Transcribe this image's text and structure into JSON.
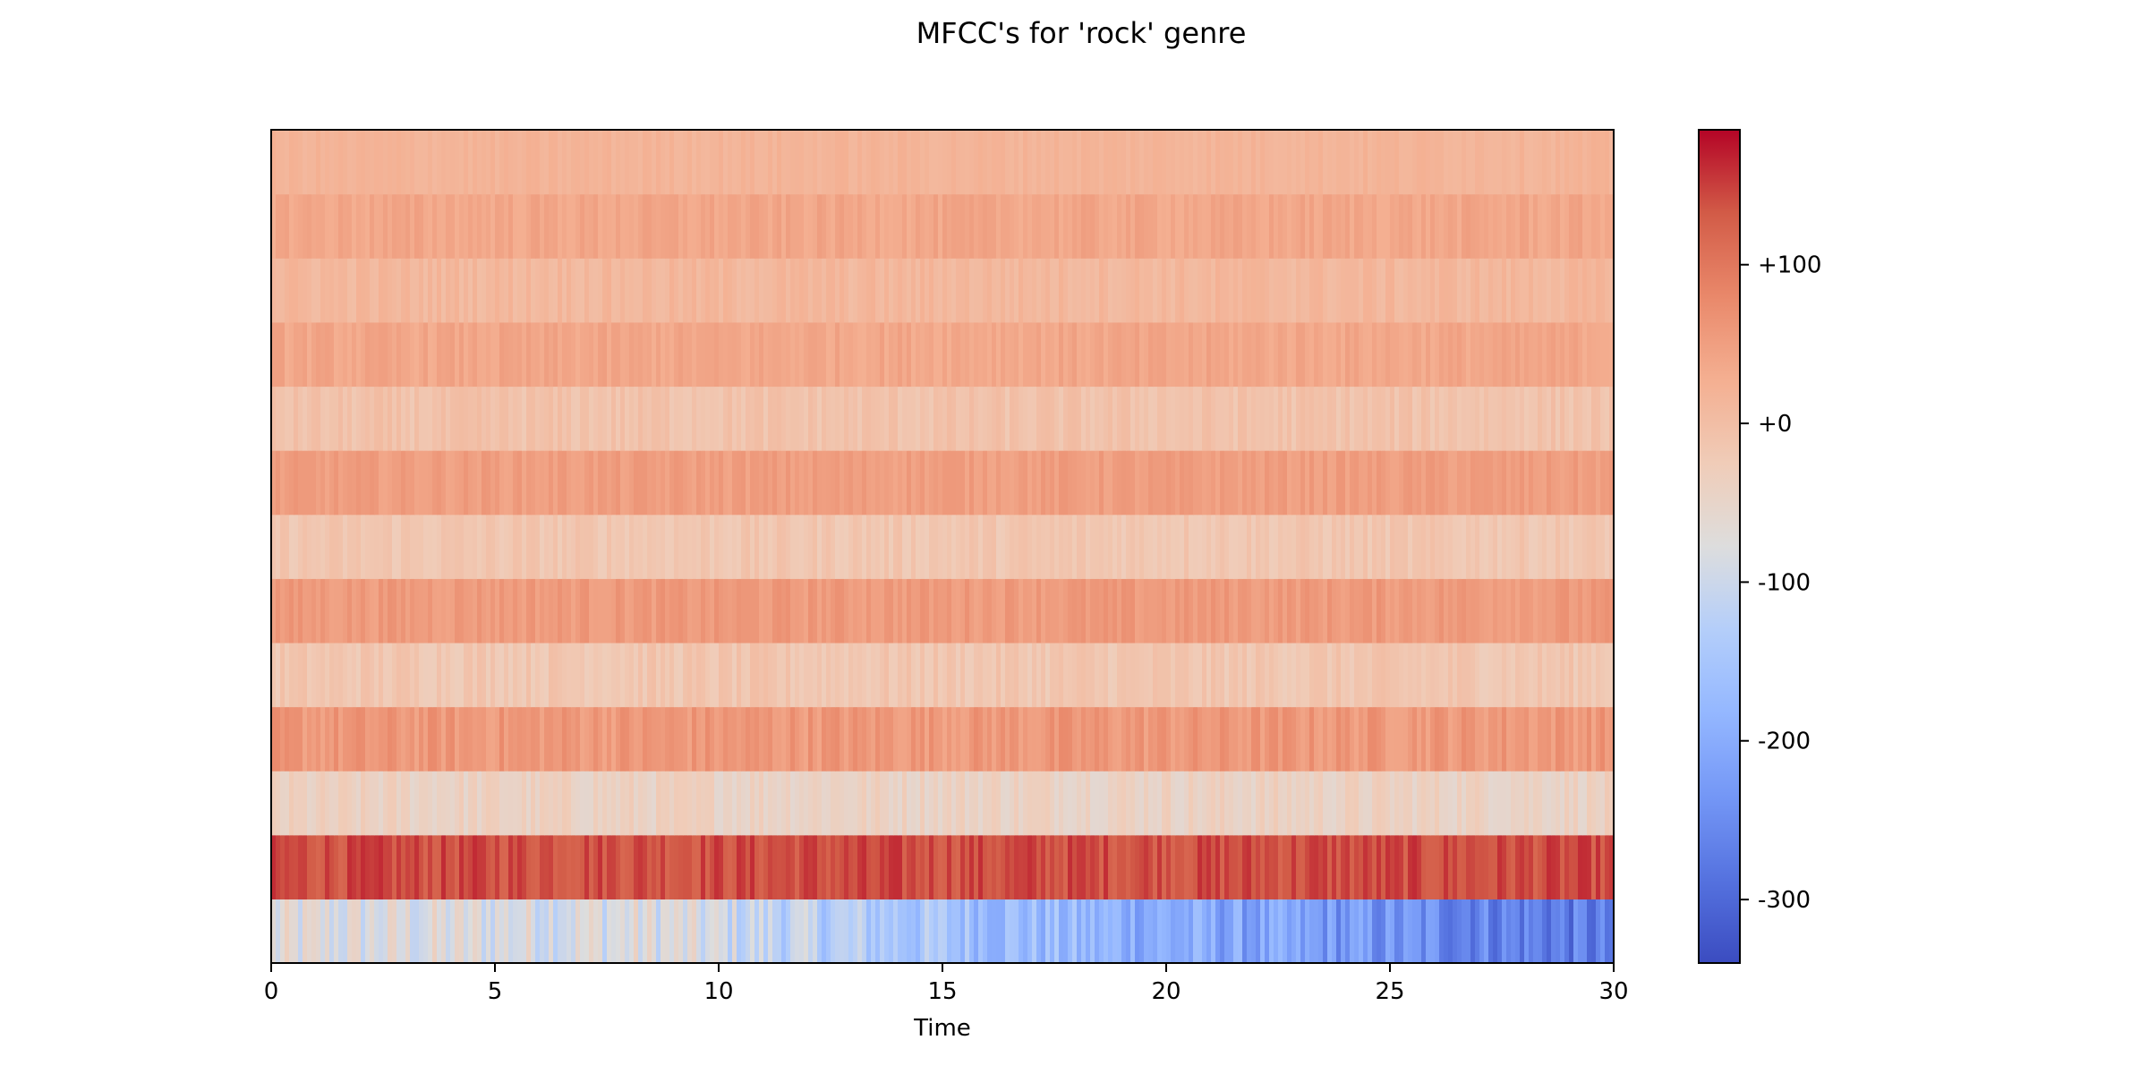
{
  "chart_data": {
    "type": "heatmap",
    "title": "MFCC's for 'rock' genre",
    "xlabel": "Time",
    "ylabel": "",
    "xlim": [
      0,
      30
    ],
    "x_ticks": [
      0,
      5,
      10,
      15,
      20,
      25,
      30
    ],
    "x_tick_labels": [
      "0",
      "5",
      "10",
      "15",
      "20",
      "25",
      "30"
    ],
    "colormap": "coolwarm",
    "color_range": [
      -340,
      185
    ],
    "colorbar_ticks": [
      100,
      0,
      -100,
      -200,
      -300
    ],
    "colorbar_tick_labels": [
      "+100",
      "+0",
      "-100",
      "-200",
      "-300"
    ],
    "time_bins": 300,
    "rows_bottom_to_top": [
      {
        "coefficient": 1,
        "mean": -175,
        "variation": 95
      },
      {
        "coefficient": 2,
        "mean": 140,
        "variation": 22
      },
      {
        "coefficient": 3,
        "mean": -40,
        "variation": 20
      },
      {
        "coefficient": 4,
        "mean": 58,
        "variation": 20
      },
      {
        "coefficient": 5,
        "mean": -15,
        "variation": 16
      },
      {
        "coefficient": 6,
        "mean": 55,
        "variation": 14
      },
      {
        "coefficient": 7,
        "mean": -15,
        "variation": 14
      },
      {
        "coefficient": 8,
        "mean": 50,
        "variation": 12
      },
      {
        "coefficient": 9,
        "mean": -8,
        "variation": 14
      },
      {
        "coefficient": 10,
        "mean": 38,
        "variation": 12
      },
      {
        "coefficient": 11,
        "mean": 12,
        "variation": 12
      },
      {
        "coefficient": 12,
        "mean": 38,
        "variation": 12
      },
      {
        "coefficient": 13,
        "mean": 18,
        "variation": 8
      }
    ]
  }
}
